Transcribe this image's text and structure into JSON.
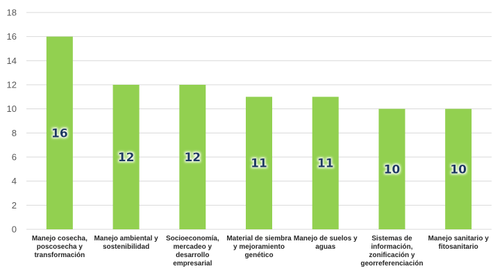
{
  "chart_data": {
    "type": "bar",
    "categories": [
      [
        "Manejo cosecha,",
        "poscosecha y",
        "transformación"
      ],
      [
        "Manejo ambiental y",
        "sostenibilidad"
      ],
      [
        "Socioeconomía,",
        "mercadeo y",
        "desarrollo",
        "empresarial"
      ],
      [
        "Material de siembra",
        "y mejoramiento",
        "genético"
      ],
      [
        "Manejo de suelos y",
        "aguas"
      ],
      [
        "Sistemas de",
        "información,",
        "zonificación y",
        "georreferenciación"
      ],
      [
        "Manejo sanitario y",
        "fitosanitario"
      ]
    ],
    "values": [
      16,
      12,
      12,
      11,
      11,
      10,
      10
    ],
    "ylim": [
      0,
      18
    ],
    "yticks": [
      0,
      2,
      4,
      6,
      8,
      10,
      12,
      14,
      16,
      18
    ],
    "title": "",
    "xlabel": "",
    "ylabel": "",
    "grid": true,
    "colors": {
      "bar": "#92d050",
      "grid": "#d9d9d9",
      "data_label": "#1f3864",
      "data_label_glow": "#ffffff"
    }
  }
}
